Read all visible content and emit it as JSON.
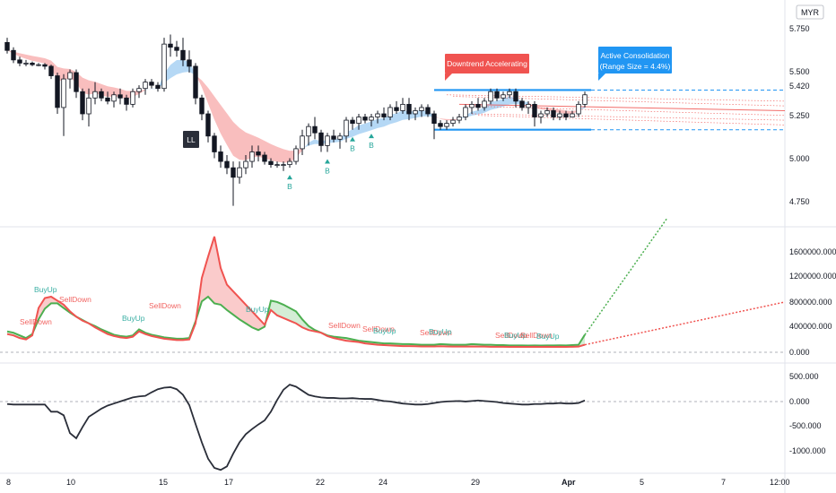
{
  "colors": {
    "up": "#ffffff",
    "down": "#131722",
    "wick": "#131722",
    "red_band": "#f7a8a8",
    "blue_band": "#9ccbf2",
    "level_blue": "#2196f3",
    "green": "#4caf50",
    "red": "#f05350",
    "osc": "#2a2e39",
    "grid_sep": "#e0e3eb",
    "label_red": "#f05350",
    "label_blue": "#2196f3",
    "label_green": "#26a69a"
  },
  "currency": "MYR",
  "price_ticks": [
    "5.750",
    "5.500",
    "5.420",
    "5.250",
    "5.000",
    "4.750"
  ],
  "volume_ticks": [
    "1600000.000",
    "1200000.000",
    "800000.000",
    "400000.000",
    "0.000"
  ],
  "osc_ticks": [
    "500.000",
    "0.000",
    "-500.000",
    "-1000.000"
  ],
  "x_ticks": [
    "8",
    "10",
    "15",
    "17",
    "22",
    "24",
    "29",
    "Apr",
    "5",
    "7",
    "12:00"
  ],
  "annotations": {
    "downtrend": "Downtrend Accelerating",
    "consolidation_1": "Active Consolidation",
    "consolidation_2": "(Range Size = 4.4%)",
    "ll": "LL",
    "buy": "B"
  },
  "signal_labels": [
    {
      "text": "SellDown",
      "kind": "sell"
    },
    {
      "text": "BuyUp",
      "kind": "buy"
    },
    {
      "text": "SellDown",
      "kind": "sell"
    },
    {
      "text": "BuyUp",
      "kind": "buy"
    },
    {
      "text": "SellDown",
      "kind": "sell"
    },
    {
      "text": "BuyUp",
      "kind": "buy"
    },
    {
      "text": "SellDown",
      "kind": "sell"
    },
    {
      "text": "SellDown",
      "kind": "sell"
    },
    {
      "text": "BuyUp",
      "kind": "buy"
    },
    {
      "text": "SellDown",
      "kind": "sell"
    },
    {
      "text": "BuyUp",
      "kind": "buy"
    },
    {
      "text": "SellDown",
      "kind": "sell"
    },
    {
      "text": "BuyUp",
      "kind": "buy"
    },
    {
      "text": "SellDown",
      "kind": "sell"
    },
    {
      "text": "BuyUp",
      "kind": "buy"
    }
  ],
  "chart_data": {
    "type": "line",
    "price_panel": {
      "ylim": [
        4.65,
        5.95
      ],
      "candles": [
        [
          5.75,
          5.78,
          5.68,
          5.7
        ],
        [
          5.7,
          5.72,
          5.62,
          5.64
        ],
        [
          5.64,
          5.66,
          5.6,
          5.62
        ],
        [
          5.62,
          5.64,
          5.6,
          5.62
        ],
        [
          5.62,
          5.63,
          5.6,
          5.61
        ],
        [
          5.61,
          5.62,
          5.6,
          5.61
        ],
        [
          5.61,
          5.62,
          5.58,
          5.6
        ],
        [
          5.6,
          5.61,
          5.52,
          5.54
        ],
        [
          5.54,
          5.56,
          5.3,
          5.34
        ],
        [
          5.34,
          5.55,
          5.16,
          5.52
        ],
        [
          5.52,
          5.58,
          5.46,
          5.56
        ],
        [
          5.56,
          5.58,
          5.4,
          5.44
        ],
        [
          5.44,
          5.46,
          5.26,
          5.3
        ],
        [
          5.3,
          5.46,
          5.22,
          5.4
        ],
        [
          5.4,
          5.5,
          5.36,
          5.44
        ],
        [
          5.44,
          5.46,
          5.38,
          5.4
        ],
        [
          5.4,
          5.44,
          5.36,
          5.38
        ],
        [
          5.38,
          5.44,
          5.34,
          5.42
        ],
        [
          5.42,
          5.46,
          5.36,
          5.4
        ],
        [
          5.4,
          5.42,
          5.32,
          5.36
        ],
        [
          5.36,
          5.46,
          5.34,
          5.44
        ],
        [
          5.44,
          5.48,
          5.4,
          5.46
        ],
        [
          5.46,
          5.52,
          5.42,
          5.5
        ],
        [
          5.5,
          5.52,
          5.46,
          5.48
        ],
        [
          5.48,
          5.5,
          5.44,
          5.46
        ],
        [
          5.46,
          5.78,
          5.44,
          5.74
        ],
        [
          5.74,
          5.8,
          5.66,
          5.72
        ],
        [
          5.72,
          5.76,
          5.66,
          5.7
        ],
        [
          5.7,
          5.78,
          5.6,
          5.64
        ],
        [
          5.64,
          5.7,
          5.56,
          5.6
        ],
        [
          5.6,
          5.62,
          5.36,
          5.4
        ],
        [
          5.4,
          5.42,
          5.26,
          5.3
        ],
        [
          5.3,
          5.32,
          5.12,
          5.16
        ],
        [
          5.16,
          5.18,
          5.02,
          5.06
        ],
        [
          5.06,
          5.1,
          4.96,
          5.0
        ],
        [
          5.0,
          5.04,
          4.92,
          4.96
        ],
        [
          4.96,
          5.0,
          4.72,
          4.9
        ],
        [
          4.9,
          5.0,
          4.86,
          4.96
        ],
        [
          4.96,
          5.04,
          4.92,
          5.0
        ],
        [
          5.0,
          5.1,
          4.96,
          5.06
        ],
        [
          5.06,
          5.1,
          5.0,
          5.04
        ],
        [
          5.04,
          5.06,
          4.98,
          5.0
        ],
        [
          5.0,
          5.02,
          4.96,
          4.98
        ],
        [
          4.98,
          5.0,
          4.96,
          4.98
        ],
        [
          4.98,
          5.0,
          4.94,
          4.98
        ],
        [
          4.98,
          5.02,
          4.96,
          5.0
        ],
        [
          5.0,
          5.1,
          4.98,
          5.08
        ],
        [
          5.08,
          5.2,
          5.04,
          5.16
        ],
        [
          5.16,
          5.24,
          5.1,
          5.22
        ],
        [
          5.22,
          5.28,
          5.14,
          5.18
        ],
        [
          5.18,
          5.2,
          5.06,
          5.1
        ],
        [
          5.1,
          5.18,
          5.06,
          5.16
        ],
        [
          5.16,
          5.2,
          5.12,
          5.14
        ],
        [
          5.14,
          5.18,
          5.08,
          5.16
        ],
        [
          5.16,
          5.28,
          5.12,
          5.26
        ],
        [
          5.26,
          5.28,
          5.2,
          5.24
        ],
        [
          5.24,
          5.3,
          5.2,
          5.28
        ],
        [
          5.28,
          5.3,
          5.24,
          5.26
        ],
        [
          5.26,
          5.3,
          5.22,
          5.28
        ],
        [
          5.28,
          5.32,
          5.24,
          5.3
        ],
        [
          5.3,
          5.34,
          5.26,
          5.28
        ],
        [
          5.28,
          5.36,
          5.26,
          5.34
        ],
        [
          5.34,
          5.38,
          5.3,
          5.32
        ],
        [
          5.32,
          5.4,
          5.3,
          5.36
        ],
        [
          5.36,
          5.4,
          5.26,
          5.3
        ],
        [
          5.3,
          5.34,
          5.26,
          5.32
        ],
        [
          5.32,
          5.36,
          5.28,
          5.34
        ],
        [
          5.34,
          5.36,
          5.28,
          5.3
        ],
        [
          5.3,
          5.32,
          5.14,
          5.24
        ],
        [
          5.24,
          5.26,
          5.2,
          5.22
        ],
        [
          5.22,
          5.26,
          5.2,
          5.24
        ],
        [
          5.24,
          5.28,
          5.22,
          5.26
        ],
        [
          5.26,
          5.3,
          5.24,
          5.28
        ],
        [
          5.28,
          5.36,
          5.26,
          5.34
        ],
        [
          5.34,
          5.38,
          5.3,
          5.36
        ],
        [
          5.36,
          5.4,
          5.32,
          5.34
        ],
        [
          5.34,
          5.4,
          5.32,
          5.38
        ],
        [
          5.38,
          5.46,
          5.36,
          5.44
        ],
        [
          5.44,
          5.46,
          5.38,
          5.4
        ],
        [
          5.4,
          5.44,
          5.38,
          5.42
        ],
        [
          5.42,
          5.46,
          5.4,
          5.44
        ],
        [
          5.44,
          5.46,
          5.34,
          5.38
        ],
        [
          5.38,
          5.4,
          5.32,
          5.34
        ],
        [
          5.34,
          5.38,
          5.3,
          5.36
        ],
        [
          5.36,
          5.38,
          5.22,
          5.28
        ],
        [
          5.28,
          5.32,
          5.24,
          5.3
        ],
        [
          5.3,
          5.34,
          5.28,
          5.32
        ],
        [
          5.32,
          5.34,
          5.26,
          5.28
        ],
        [
          5.28,
          5.32,
          5.26,
          5.3
        ],
        [
          5.3,
          5.32,
          5.26,
          5.28
        ],
        [
          5.28,
          5.32,
          5.28,
          5.3
        ],
        [
          5.3,
          5.38,
          5.28,
          5.36
        ],
        [
          5.36,
          5.44,
          5.34,
          5.42
        ]
      ],
      "levels": {
        "upper": 5.45,
        "lower": 5.2,
        "mid_lines": [
          5.42,
          5.39,
          5.36,
          5.33,
          5.3,
          5.27
        ]
      },
      "buy_signals": [
        45,
        51,
        55,
        58
      ]
    },
    "volume_panel": {
      "ylim": [
        -80000,
        1800000
      ],
      "series": [
        {
          "name": "green",
          "values": [
            300000,
            280000,
            240000,
            200000,
            260000,
            480000,
            640000,
            720000,
            720000,
            650000,
            580000,
            520000,
            470000,
            420000,
            380000,
            330000,
            290000,
            250000,
            230000,
            220000,
            240000,
            330000,
            280000,
            250000,
            230000,
            210000,
            200000,
            190000,
            190000,
            200000,
            450000,
            750000,
            820000,
            720000,
            700000,
            620000,
            550000,
            480000,
            420000,
            360000,
            320000,
            370000,
            760000,
            740000,
            700000,
            650000,
            600000,
            480000,
            380000,
            320000,
            280000,
            240000,
            220000,
            210000,
            200000,
            180000,
            160000,
            150000,
            140000,
            130000,
            120000,
            120000,
            115000,
            110000,
            110000,
            105000,
            100000,
            100000,
            100000,
            110000,
            105000,
            100000,
            100000,
            100000,
            110000,
            105000,
            100000,
            100000,
            95000,
            95000,
            90000,
            90000,
            90000,
            88000,
            90000,
            88000,
            90000,
            90000,
            92000,
            90000,
            95000,
            100000,
            250000
          ]
        },
        {
          "name": "red",
          "values": [
            260000,
            240000,
            200000,
            180000,
            240000,
            650000,
            800000,
            820000,
            760000,
            700000,
            600000,
            520000,
            460000,
            420000,
            360000,
            310000,
            260000,
            230000,
            210000,
            200000,
            220000,
            300000,
            260000,
            230000,
            210000,
            190000,
            180000,
            170000,
            170000,
            180000,
            420000,
            1100000,
            1420000,
            1720000,
            1250000,
            1000000,
            900000,
            800000,
            700000,
            600000,
            500000,
            400000,
            620000,
            540000,
            500000,
            460000,
            420000,
            360000,
            320000,
            300000,
            280000,
            230000,
            200000,
            180000,
            160000,
            150000,
            140000,
            120000,
            110000,
            100000,
            95000,
            90000,
            85000,
            80000,
            80000,
            78000,
            75000,
            75000,
            75000,
            78000,
            75000,
            72000,
            72000,
            72000,
            75000,
            72000,
            72000,
            70000,
            70000,
            70000,
            68000,
            70000,
            68000,
            68000,
            70000,
            68000,
            70000,
            68000,
            70000,
            68000,
            70000,
            72000,
            100000
          ]
        }
      ],
      "projection": {
        "green_end": 2000000,
        "red_end": 740000
      }
    },
    "osc_panel": {
      "ylim": [
        -1350000,
        650000
      ],
      "values": [
        -30000,
        -40000,
        -40000,
        -40000,
        -40000,
        -40000,
        -40000,
        -180000,
        -180000,
        -250000,
        -600000,
        -700000,
        -480000,
        -280000,
        -200000,
        -120000,
        -60000,
        -20000,
        20000,
        60000,
        100000,
        120000,
        130000,
        200000,
        260000,
        290000,
        300000,
        260000,
        150000,
        -50000,
        -420000,
        -780000,
        -1100000,
        -1280000,
        -1320000,
        -1250000,
        -1000000,
        -780000,
        -620000,
        -520000,
        -430000,
        -350000,
        -180000,
        50000,
        250000,
        350000,
        310000,
        230000,
        150000,
        120000,
        100000,
        90000,
        90000,
        80000,
        80000,
        85000,
        75000,
        70000,
        70000,
        50000,
        30000,
        20000,
        0,
        -20000,
        -30000,
        -40000,
        -40000,
        -30000,
        -10000,
        10000,
        20000,
        25000,
        30000,
        20000,
        30000,
        40000,
        30000,
        20000,
        10000,
        -10000,
        -20000,
        -30000,
        -40000,
        -40000,
        -30000,
        -30000,
        -20000,
        -20000,
        -10000,
        -20000,
        -20000,
        -10000,
        40000
      ]
    }
  }
}
